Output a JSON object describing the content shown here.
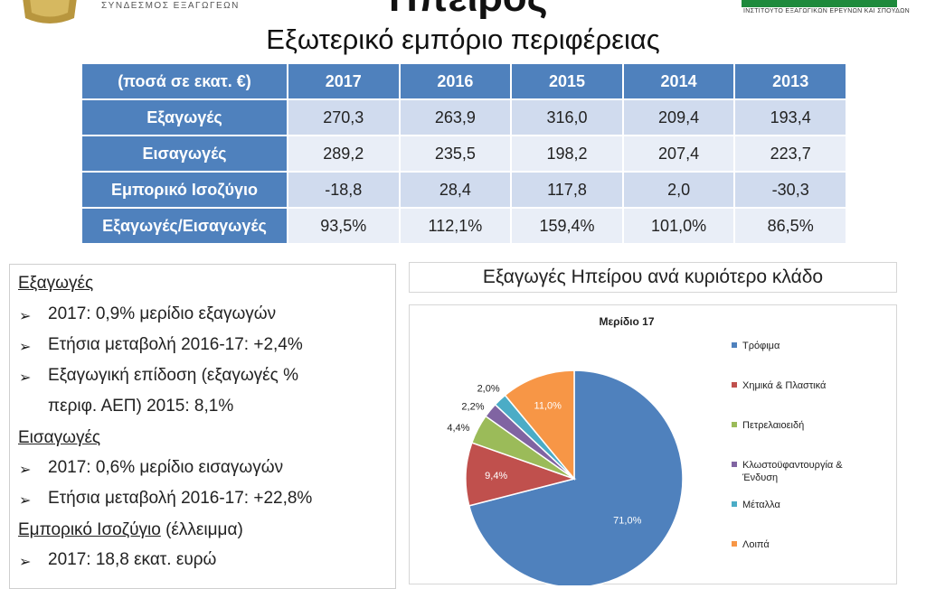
{
  "header": {
    "org_name": "ΣΥΝΔΕΣΜΟΣ ΕΞΑΓΩΓΕΩΝ",
    "main_title": "Ηπείρος",
    "right_logo_text": "ΙΝΣΤΙΤΟΥΤΟ ΕΞΑΓΩΓΙΚΩΝ ΕΡΕΥΝΩΝ ΚΑΙ ΣΠΟΥΔΩΝ",
    "subtitle": "Εξωτερικό εμπόριο περιφέρειας"
  },
  "table": {
    "corner": "(ποσά σε εκατ. €)",
    "years": [
      "2017",
      "2016",
      "2015",
      "2014",
      "2013"
    ],
    "rows": [
      {
        "label": "Εξαγωγές",
        "values": [
          "270,3",
          "263,9",
          "316,0",
          "209,4",
          "193,4"
        ]
      },
      {
        "label": "Εισαγωγές",
        "values": [
          "289,2",
          "235,5",
          "198,2",
          "207,4",
          "223,7"
        ]
      },
      {
        "label": "Εμπορικό Ισοζύγιο",
        "values": [
          "-18,8",
          "28,4",
          "117,8",
          "2,0",
          "-30,3"
        ]
      },
      {
        "label": "Εξαγωγές/Εισαγωγές",
        "values": [
          "93,5%",
          "112,1%",
          "159,4%",
          "101,0%",
          "86,5%"
        ]
      }
    ]
  },
  "notes": {
    "exports_heading": "Εξαγωγές",
    "exports_b1": "2017: 0,9% μερίδιο εξαγωγών",
    "exports_b2": "Ετήσια μεταβολή 2016-17: +2,4%",
    "exports_b3a": "Εξαγωγική επίδοση (εξαγωγές %",
    "exports_b3b": "περιφ. ΑΕΠ) 2015: 8,1%",
    "imports_heading": "Εισαγωγές",
    "imports_b1": "2017: 0,6% μερίδιο εισαγωγών",
    "imports_b2": "Ετήσια μεταβολή 2016-17: +22,8%",
    "balance_heading": "Εμπορικό Ισοζύγιο",
    "balance_suffix": " (έλλειμμα)",
    "balance_b1": "2017: 18,8 εκατ. ευρώ",
    "bullet_glyph": "➢"
  },
  "chart_section_title": "Εξαγωγές Ηπείρου ανά κυριότερο κλάδο",
  "chart_data": {
    "type": "pie",
    "title": "Μερίδιο 17",
    "legend_position": "right",
    "slices": [
      {
        "name": "Τρόφιμα",
        "value": 71.0,
        "label": "71,0%",
        "color": "#4f81bd"
      },
      {
        "name": "Χημικά & Πλαστικά",
        "value": 9.4,
        "label": "9,4%",
        "color": "#c0504d"
      },
      {
        "name": "Πετρελαιοειδή",
        "value": 4.4,
        "label": "4,4%",
        "color": "#9bbb59"
      },
      {
        "name": "Κλωστοϋφαντουργία & Ένδυση",
        "value": 2.2,
        "label": "2,2%",
        "color": "#8064a2"
      },
      {
        "name": "Μέταλλα",
        "value": 2.0,
        "label": "2,0%",
        "color": "#4bacc6"
      },
      {
        "name": "Λοιπά",
        "value": 11.0,
        "label": "11,0%",
        "color": "#f79646"
      }
    ]
  }
}
